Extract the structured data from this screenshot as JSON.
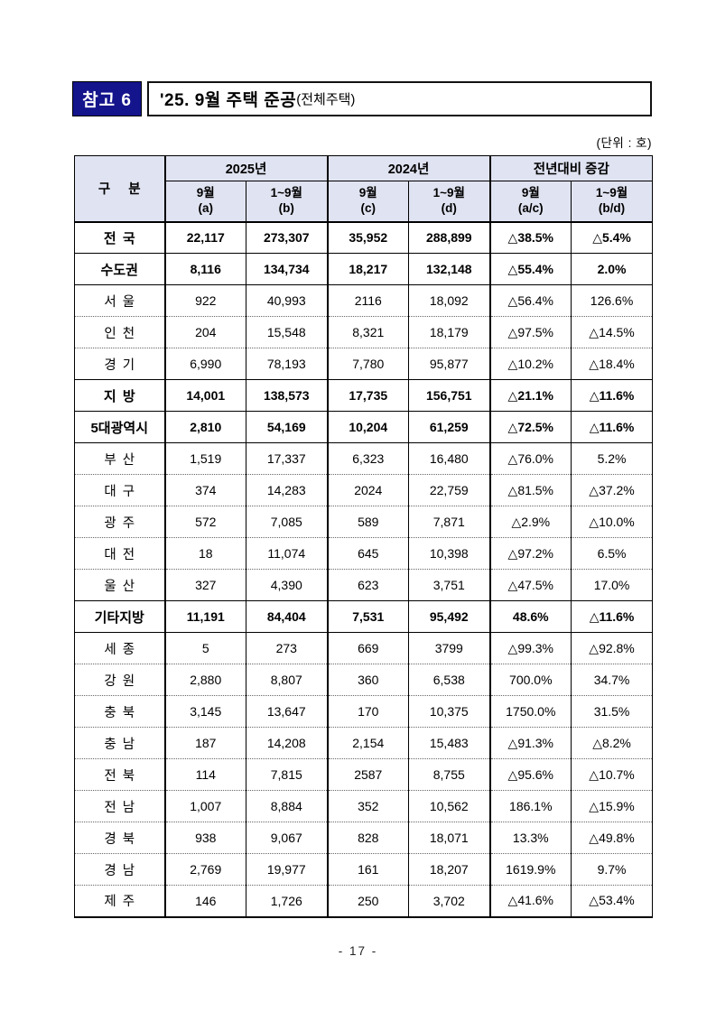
{
  "header": {
    "badge": "참고 6",
    "title": "'25. 9월 주택 준공",
    "title_suffix": "(전체주택)",
    "unit": "(단위 : 호)"
  },
  "table": {
    "corner_label": "구 분",
    "groups": [
      {
        "label": "2025년",
        "cols": [
          {
            "line1": "9월",
            "line2": "(a)"
          },
          {
            "line1": "1~9월",
            "line2": "(b)"
          }
        ]
      },
      {
        "label": "2024년",
        "cols": [
          {
            "line1": "9월",
            "line2": "(c)"
          },
          {
            "line1": "1~9월",
            "line2": "(d)"
          }
        ]
      },
      {
        "label": "전년대비 증감",
        "cols": [
          {
            "line1": "9월",
            "line2": "(a/c)"
          },
          {
            "line1": "1~9월",
            "line2": "(b/d)"
          }
        ]
      }
    ],
    "rows": [
      {
        "label": "전 국",
        "bold": true,
        "values": [
          "22,117",
          "273,307",
          "35,952",
          "288,899",
          "△38.5%",
          "△5.4%"
        ]
      },
      {
        "label": "수도권",
        "bold": true,
        "values": [
          "8,116",
          "134,734",
          "18,217",
          "132,148",
          "△55.4%",
          "2.0%"
        ]
      },
      {
        "label": "서 울",
        "bold": false,
        "values": [
          "922",
          "40,993",
          "2116",
          "18,092",
          "△56.4%",
          "126.6%"
        ]
      },
      {
        "label": "인 천",
        "bold": false,
        "values": [
          "204",
          "15,548",
          "8,321",
          "18,179",
          "△97.5%",
          "△14.5%"
        ]
      },
      {
        "label": "경 기",
        "bold": false,
        "values": [
          "6,990",
          "78,193",
          "7,780",
          "95,877",
          "△10.2%",
          "△18.4%"
        ]
      },
      {
        "label": "지 방",
        "bold": true,
        "values": [
          "14,001",
          "138,573",
          "17,735",
          "156,751",
          "△21.1%",
          "△11.6%"
        ]
      },
      {
        "label": "5대광역시",
        "bold": true,
        "values": [
          "2,810",
          "54,169",
          "10,204",
          "61,259",
          "△72.5%",
          "△11.6%"
        ]
      },
      {
        "label": "부 산",
        "bold": false,
        "values": [
          "1,519",
          "17,337",
          "6,323",
          "16,480",
          "△76.0%",
          "5.2%"
        ]
      },
      {
        "label": "대 구",
        "bold": false,
        "values": [
          "374",
          "14,283",
          "2024",
          "22,759",
          "△81.5%",
          "△37.2%"
        ]
      },
      {
        "label": "광 주",
        "bold": false,
        "values": [
          "572",
          "7,085",
          "589",
          "7,871",
          "△2.9%",
          "△10.0%"
        ]
      },
      {
        "label": "대 전",
        "bold": false,
        "values": [
          "18",
          "11,074",
          "645",
          "10,398",
          "△97.2%",
          "6.5%"
        ]
      },
      {
        "label": "울 산",
        "bold": false,
        "values": [
          "327",
          "4,390",
          "623",
          "3,751",
          "△47.5%",
          "17.0%"
        ]
      },
      {
        "label": "기타지방",
        "bold": true,
        "values": [
          "11,191",
          "84,404",
          "7,531",
          "95,492",
          "48.6%",
          "△11.6%"
        ]
      },
      {
        "label": "세 종",
        "bold": false,
        "values": [
          "5",
          "273",
          "669",
          "3799",
          "△99.3%",
          "△92.8%"
        ]
      },
      {
        "label": "강 원",
        "bold": false,
        "values": [
          "2,880",
          "8,807",
          "360",
          "6,538",
          "700.0%",
          "34.7%"
        ]
      },
      {
        "label": "충 북",
        "bold": false,
        "values": [
          "3,145",
          "13,647",
          "170",
          "10,375",
          "1750.0%",
          "31.5%"
        ]
      },
      {
        "label": "충 남",
        "bold": false,
        "values": [
          "187",
          "14,208",
          "2,154",
          "15,483",
          "△91.3%",
          "△8.2%"
        ]
      },
      {
        "label": "전 북",
        "bold": false,
        "values": [
          "114",
          "7,815",
          "2587",
          "8,755",
          "△95.6%",
          "△10.7%"
        ]
      },
      {
        "label": "전 남",
        "bold": false,
        "values": [
          "1,007",
          "8,884",
          "352",
          "10,562",
          "186.1%",
          "△15.9%"
        ]
      },
      {
        "label": "경 북",
        "bold": false,
        "values": [
          "938",
          "9,067",
          "828",
          "18,071",
          "13.3%",
          "△49.8%"
        ]
      },
      {
        "label": "경 남",
        "bold": false,
        "values": [
          "2,769",
          "19,977",
          "161",
          "18,207",
          "1619.9%",
          "9.7%"
        ]
      },
      {
        "label": "제 주",
        "bold": false,
        "values": [
          "146",
          "1,726",
          "250",
          "3,702",
          "△41.6%",
          "△53.4%"
        ]
      }
    ]
  },
  "footer": {
    "page_number": "- 17 -"
  },
  "colors": {
    "accent_navy": "#14148C",
    "table_header_bg": "#E0E3F1"
  }
}
